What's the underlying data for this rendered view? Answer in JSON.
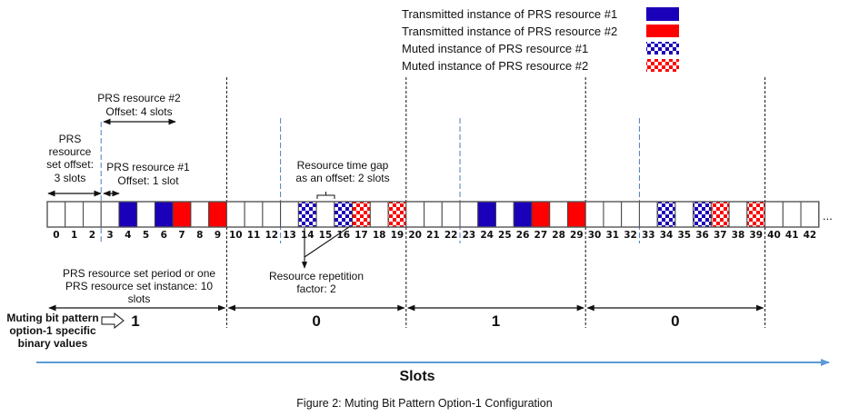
{
  "legend": [
    {
      "label": "Transmitted instance of PRS resource #1",
      "kind": "tx1"
    },
    {
      "label": "Transmitted instance of PRS resource #2",
      "kind": "tx2"
    },
    {
      "label": "Muted instance of PRS resource #1",
      "kind": "mute1"
    },
    {
      "label": "Muted instance of PRS resource #2",
      "kind": "mute2"
    }
  ],
  "colors": {
    "resource1": "#1a00b8",
    "resource2": "#ff0000",
    "period_line": "#111111",
    "offset_line": "#4a7fc1",
    "slots_axis": "#5b9bd5"
  },
  "slots": {
    "count": 43,
    "labels": [
      "0",
      "1",
      "2",
      "3",
      "4",
      "5",
      "6",
      "7",
      "8",
      "9",
      "10",
      "11",
      "12",
      "13",
      "14",
      "15",
      "16",
      "17",
      "18",
      "19",
      "20",
      "21",
      "22",
      "23",
      "24",
      "25",
      "26",
      "27",
      "28",
      "29",
      "30",
      "31",
      "32",
      "33",
      "34",
      "35",
      "36",
      "37",
      "38",
      "39",
      "40",
      "41",
      "42"
    ],
    "states": {
      "4": "tx1",
      "6": "tx1",
      "7": "tx2",
      "9": "tx2",
      "14": "mute1",
      "16": "mute1",
      "17": "mute2",
      "19": "mute2",
      "24": "tx1",
      "26": "tx1",
      "27": "tx2",
      "29": "tx2",
      "34": "mute1",
      "36": "mute1",
      "37": "mute2",
      "39": "mute2"
    },
    "ellipsis": "..."
  },
  "annotations": {
    "res2_offset": [
      "PRS resource #2",
      "Offset: 4 slots"
    ],
    "set_offset": [
      "PRS",
      "resource",
      "set offset:",
      "3 slots"
    ],
    "res1_offset": [
      "PRS resource #1",
      "Offset: 1 slot"
    ],
    "time_gap": [
      "Resource time gap",
      "as an offset: 2 slots"
    ],
    "repetition": [
      "Resource repetition",
      "factor: 2"
    ],
    "period": [
      "PRS resource set period or one",
      "PRS resource set instance: 10",
      "slots"
    ],
    "muting_label": [
      "Muting bit pattern",
      "option-1 specific",
      "binary values"
    ]
  },
  "muting_bits": [
    "1",
    "0",
    "1",
    "0"
  ],
  "axis_label": "Slots",
  "caption": "Figure 2: Muting Bit Pattern Option-1 Configuration"
}
